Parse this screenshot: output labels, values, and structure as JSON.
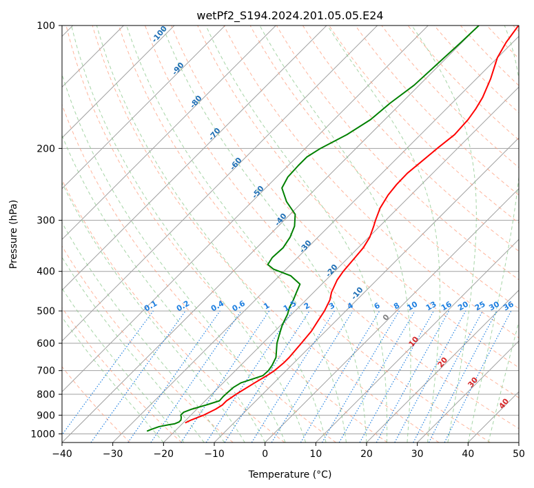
{
  "chart_data": {
    "type": "line",
    "title": "wetPf2_S194.2024.201.05.05.E24",
    "xlabel": "Temperature (°C)",
    "ylabel": "Pressure (hPa)",
    "xlim": [
      -40,
      50
    ],
    "ylim": [
      1050,
      100
    ],
    "y_scale": "log",
    "x_ticks": [
      -40,
      -30,
      -20,
      -10,
      0,
      10,
      20,
      30,
      40,
      50
    ],
    "x_tick_labels": [
      "−40",
      "−30",
      "−20",
      "−10",
      "0",
      "10",
      "20",
      "30",
      "40",
      "50"
    ],
    "y_ticks": [
      100,
      200,
      300,
      400,
      500,
      600,
      700,
      800,
      900,
      1000
    ],
    "y_tick_labels": [
      "100",
      "200",
      "300",
      "400",
      "500",
      "600",
      "700",
      "800",
      "900",
      "1000"
    ],
    "grid": true,
    "series": [
      {
        "color": "#ff0000",
        "points": [
          [
            940,
            -19.6
          ],
          [
            925,
            -19.0
          ],
          [
            900,
            -17.5
          ],
          [
            870,
            -16.3
          ],
          [
            850,
            -15.8
          ],
          [
            830,
            -15.8
          ],
          [
            800,
            -15.2
          ],
          [
            750,
            -13.8
          ],
          [
            720,
            -12.8
          ],
          [
            700,
            -12.3
          ],
          [
            670,
            -12.0
          ],
          [
            650,
            -12.0
          ],
          [
            600,
            -12.4
          ],
          [
            560,
            -12.8
          ],
          [
            530,
            -13.5
          ],
          [
            500,
            -14.2
          ],
          [
            470,
            -15.3
          ],
          [
            450,
            -16.5
          ],
          [
            420,
            -17.8
          ],
          [
            400,
            -18.3
          ],
          [
            370,
            -18.7
          ],
          [
            350,
            -19.0
          ],
          [
            330,
            -19.8
          ],
          [
            310,
            -21.2
          ],
          [
            300,
            -22.0
          ],
          [
            280,
            -23.5
          ],
          [
            260,
            -24.5
          ],
          [
            245,
            -24.9
          ],
          [
            230,
            -25.0
          ],
          [
            215,
            -24.5
          ],
          [
            200,
            -24.0
          ],
          [
            185,
            -23.3
          ],
          [
            170,
            -23.6
          ],
          [
            160,
            -24.2
          ],
          [
            150,
            -25.1
          ],
          [
            135,
            -27.2
          ],
          [
            120,
            -30.0
          ],
          [
            110,
            -31.3
          ],
          [
            100,
            -32.2
          ]
        ]
      },
      {
        "color": "#008000",
        "points": [
          [
            985,
            -25.5
          ],
          [
            975,
            -25.0
          ],
          [
            960,
            -24.0
          ],
          [
            950,
            -22.5
          ],
          [
            945,
            -21.5
          ],
          [
            935,
            -21.0
          ],
          [
            925,
            -21.0
          ],
          [
            910,
            -21.5
          ],
          [
            900,
            -22.0
          ],
          [
            885,
            -22.0
          ],
          [
            870,
            -21.0
          ],
          [
            850,
            -19.0
          ],
          [
            830,
            -17.2
          ],
          [
            810,
            -17.3
          ],
          [
            790,
            -17.2
          ],
          [
            770,
            -17.1
          ],
          [
            750,
            -16.5
          ],
          [
            720,
            -13.6
          ],
          [
            700,
            -13.5
          ],
          [
            680,
            -13.8
          ],
          [
            650,
            -14.6
          ],
          [
            600,
            -17.2
          ],
          [
            570,
            -18.5
          ],
          [
            540,
            -19.8
          ],
          [
            510,
            -20.8
          ],
          [
            490,
            -21.8
          ],
          [
            470,
            -22.5
          ],
          [
            450,
            -23.4
          ],
          [
            430,
            -24.3
          ],
          [
            410,
            -27.8
          ],
          [
            395,
            -32.5
          ],
          [
            385,
            -34.5
          ],
          [
            370,
            -35.0
          ],
          [
            350,
            -34.8
          ],
          [
            330,
            -35.5
          ],
          [
            310,
            -36.8
          ],
          [
            290,
            -39.0
          ],
          [
            270,
            -43.2
          ],
          [
            250,
            -46.8
          ],
          [
            235,
            -47.8
          ],
          [
            220,
            -48.0
          ],
          [
            210,
            -48.0
          ],
          [
            200,
            -47.0
          ],
          [
            185,
            -44.5
          ],
          [
            170,
            -42.8
          ],
          [
            155,
            -42.2
          ],
          [
            140,
            -41.0
          ],
          [
            120,
            -40.5
          ],
          [
            110,
            -40.2
          ],
          [
            100,
            -40.0
          ]
        ]
      }
    ],
    "dry_adiabat_labels": [
      "-100",
      "-90",
      "-80",
      "-70",
      "-60",
      "-50",
      "-40",
      "-30",
      "-20",
      "-10",
      "0",
      "10",
      "20",
      "30",
      "40"
    ],
    "mixing_ratio_labels": [
      "0.1",
      "0.2",
      "0.4",
      "0.6",
      "1",
      "1.5",
      "2",
      "3",
      "4",
      "6",
      "8",
      "10",
      "13",
      "16",
      "20",
      "25",
      "30",
      "36"
    ],
    "mixing_ratio_values": [
      0.1,
      0.2,
      0.4,
      0.6,
      1,
      1.5,
      2,
      3,
      4,
      6,
      8,
      10,
      13,
      16,
      20,
      25,
      30,
      36
    ],
    "colors": {
      "temperature": "#ff0000",
      "dewpoint": "#008000",
      "isotherm": "#a0a0a0",
      "dry_adiabat": "#ff9b7a",
      "moist_adiabat": "#8fc98f",
      "mixing_ratio": "#1e7fe0",
      "label_blue": "#1f6fb5",
      "label_red": "#d62728",
      "label_grey": "#808080"
    }
  }
}
